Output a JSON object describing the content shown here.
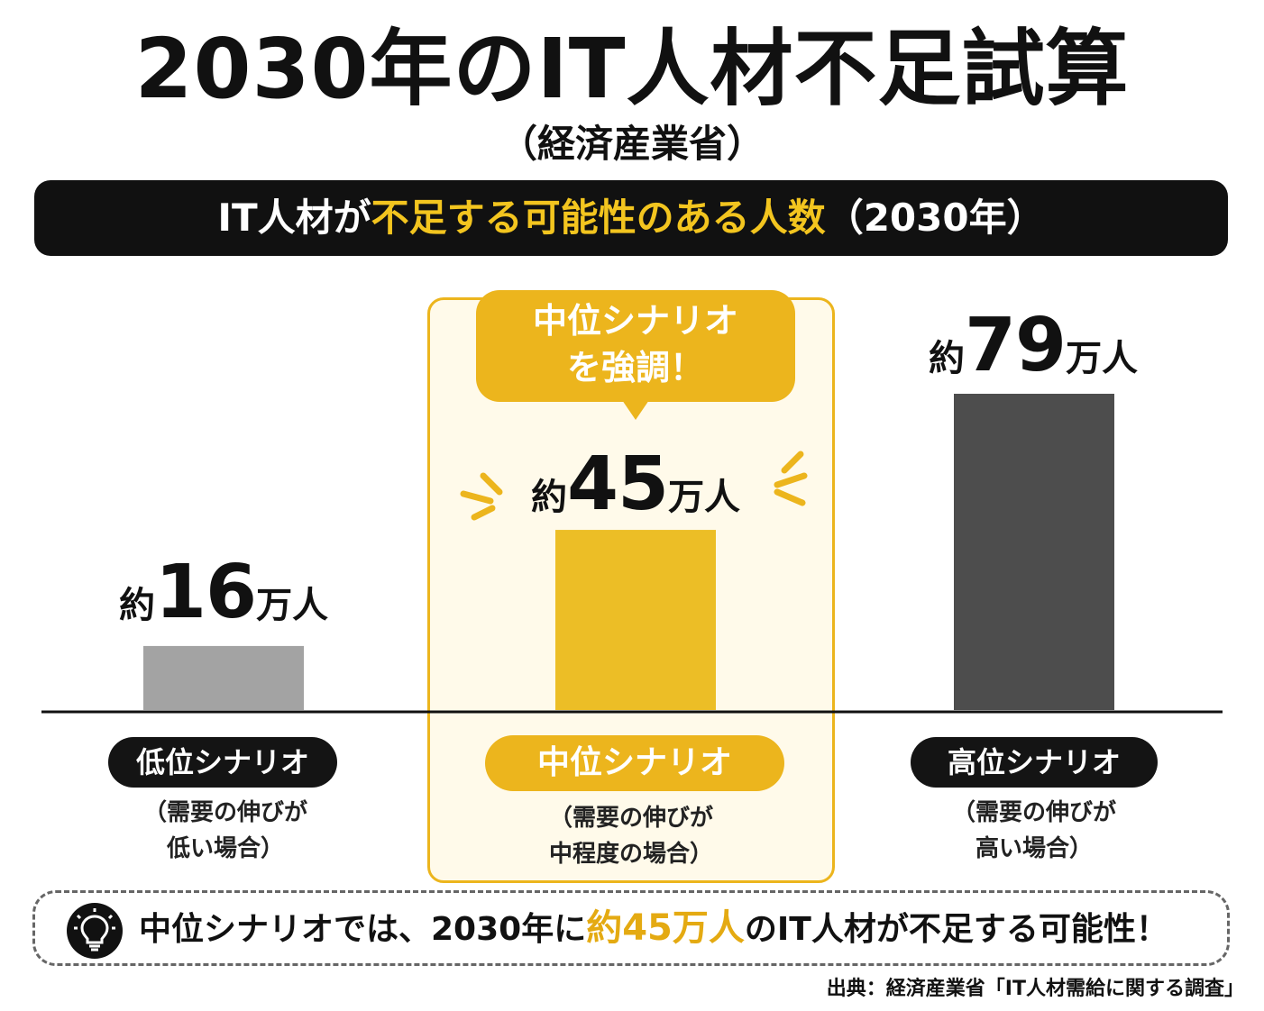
{
  "title": "2030年のIT人材不足試算",
  "subtitle": "（経済産業省）",
  "banner": {
    "part1": "IT人材が",
    "highlight": "不足する可能性のある人数",
    "part2": "（2030年）"
  },
  "callout": {
    "line1": "中位シナリオ",
    "line2": "を強調！"
  },
  "chart_data": {
    "type": "bar",
    "title": "IT人材が不足する可能性のある人数（2030年）",
    "categories": [
      "低位シナリオ",
      "中位シナリオ",
      "高位シナリオ"
    ],
    "values": [
      16,
      45,
      79
    ],
    "unit": "万人",
    "value_prefix": "約",
    "descriptions": [
      [
        "（需要の伸びが",
        "低い場合）"
      ],
      [
        "（需要の伸びが",
        "中程度の場合）"
      ],
      [
        "（需要の伸びが",
        "高い場合）"
      ]
    ],
    "highlighted_index": 1,
    "colors": [
      "#a3a3a3",
      "#ecbe26",
      "#4d4d4d"
    ],
    "highlight_panel_color": "#fffaea",
    "highlight_border_color": "#ecb51d",
    "ylim": [
      0,
      79
    ],
    "grid": false,
    "legend": "none"
  },
  "note": {
    "icon": "lightbulb-icon",
    "text1": "中位シナリオでは、2030年に",
    "highlight": "約45万人",
    "text2": "のIT人材が不足する可能性！"
  },
  "source": "出典：経済産業省「IT人材需給に関する調査」"
}
